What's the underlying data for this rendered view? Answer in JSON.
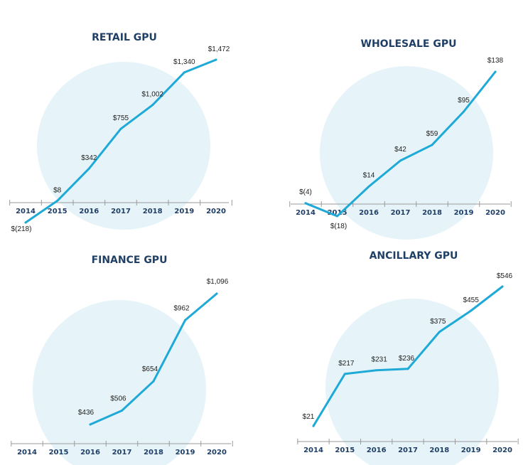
{
  "colors": {
    "line": "#1ea9d6",
    "circle": "#e6f4f9",
    "title": "#1f3f66",
    "axis": "#9a9a9a"
  },
  "chart_data": [
    {
      "type": "line",
      "title": "RETAIL GPU",
      "x": [
        "2014",
        "2015",
        "2016",
        "2017",
        "2018",
        "2019",
        "2020"
      ],
      "values": [
        -218,
        8,
        342,
        755,
        1002,
        1340,
        1472
      ],
      "labels": [
        "$(218)",
        "$8",
        "$342",
        "$755",
        "$1,002",
        "$1,340",
        "$1,472"
      ],
      "ylim": [
        -218,
        1472
      ],
      "grid": false
    },
    {
      "type": "line",
      "title": "WHOLESALE GPU",
      "x": [
        "2014",
        "2015",
        "2016",
        "2017",
        "2018",
        "2019",
        "2020"
      ],
      "values": [
        -4,
        -18,
        14,
        42,
        59,
        95,
        138
      ],
      "labels": [
        "$(4)",
        "$(18)",
        "$14",
        "$42",
        "$59",
        "$95",
        "$138"
      ],
      "ylim": [
        -18,
        138
      ],
      "grid": false
    },
    {
      "type": "line",
      "title": "FINANCE GPU",
      "x": [
        "2014",
        "2015",
        "2016",
        "2017",
        "2018",
        "2019",
        "2020"
      ],
      "values": [
        null,
        null,
        436,
        506,
        654,
        962,
        1096
      ],
      "labels": [
        "",
        "",
        "$436",
        "$506",
        "$654",
        "$962",
        "$1,096"
      ],
      "ylim": [
        400,
        1096
      ],
      "grid": false
    },
    {
      "type": "line",
      "title": "ANCILLARY GPU",
      "x": [
        "2014",
        "2015",
        "2016",
        "2017",
        "2018",
        "2019",
        "2020"
      ],
      "values": [
        21,
        217,
        231,
        236,
        375,
        455,
        546
      ],
      "labels": [
        "$21",
        "$217",
        "$231",
        "$236",
        "$375",
        "$455",
        "$546"
      ],
      "ylim": [
        0,
        546
      ],
      "grid": false
    }
  ]
}
